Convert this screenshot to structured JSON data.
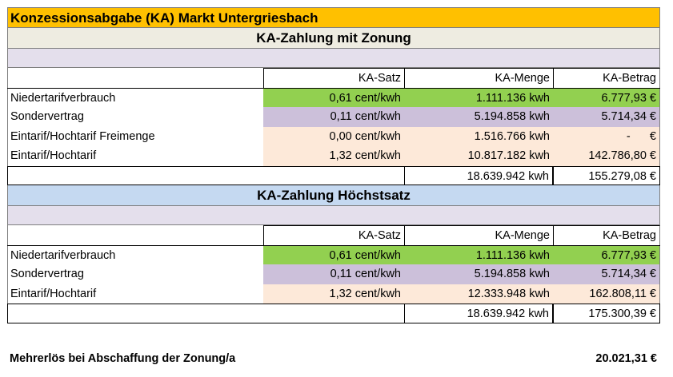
{
  "title": "Konzessionsabgabe (KA) Markt Untergriesbach",
  "section1": {
    "heading": "KA-Zahlung mit Zonung",
    "headers": [
      "KA-Satz",
      "KA-Menge",
      "KA-Betrag"
    ],
    "rows": [
      {
        "label": "Niedertarifverbrauch",
        "satz": "0,61 cent/kwh",
        "menge": "1.111.136 kwh",
        "betrag": "6.777,93 €"
      },
      {
        "label": "Sondervertrag",
        "satz": "0,11 cent/kwh",
        "menge": "5.194.858 kwh",
        "betrag": "5.714,34 €"
      },
      {
        "label": "Eintarif/Hochtarif Freimenge",
        "satz": "0,00 cent/kwh",
        "menge": "1.516.766 kwh",
        "betrag": "-      €"
      },
      {
        "label": "Eintarif/Hochtarif",
        "satz": "1,32 cent/kwh",
        "menge": "10.817.182 kwh",
        "betrag": "142.786,80 €"
      }
    ],
    "total_menge": "18.639.942 kwh",
    "total_betrag": "155.279,08 €"
  },
  "section2": {
    "heading": "KA-Zahlung Höchstsatz",
    "headers": [
      "KA-Satz",
      "KA-Menge",
      "KA-Betrag"
    ],
    "rows": [
      {
        "label": "Niedertarifverbrauch",
        "satz": "0,61 cent/kwh",
        "menge": "1.111.136 kwh",
        "betrag": "6.777,93 €"
      },
      {
        "label": "Sondervertrag",
        "satz": "0,11 cent/kwh",
        "menge": "5.194.858 kwh",
        "betrag": "5.714,34 €"
      },
      {
        "label": "Eintarif/Hochtarif",
        "satz": "1,32 cent/kwh",
        "menge": "12.333.948 kwh",
        "betrag": "162.808,11 €"
      }
    ],
    "total_menge": "18.639.942 kwh",
    "total_betrag": "175.300,39 €"
  },
  "footer": {
    "label": "Mehrerlös bei Abschaffung der Zonung/a",
    "value": "20.021,31 €"
  },
  "colors": {
    "title_bg": "#ffc000",
    "section1_bg": "#eeece1",
    "section2_bg": "#c5d9f1",
    "band_bg": "#e4dfec",
    "niedertarif": "#92d050",
    "sondervertrag": "#ccc0da",
    "eintarif": "#fde9d9"
  }
}
